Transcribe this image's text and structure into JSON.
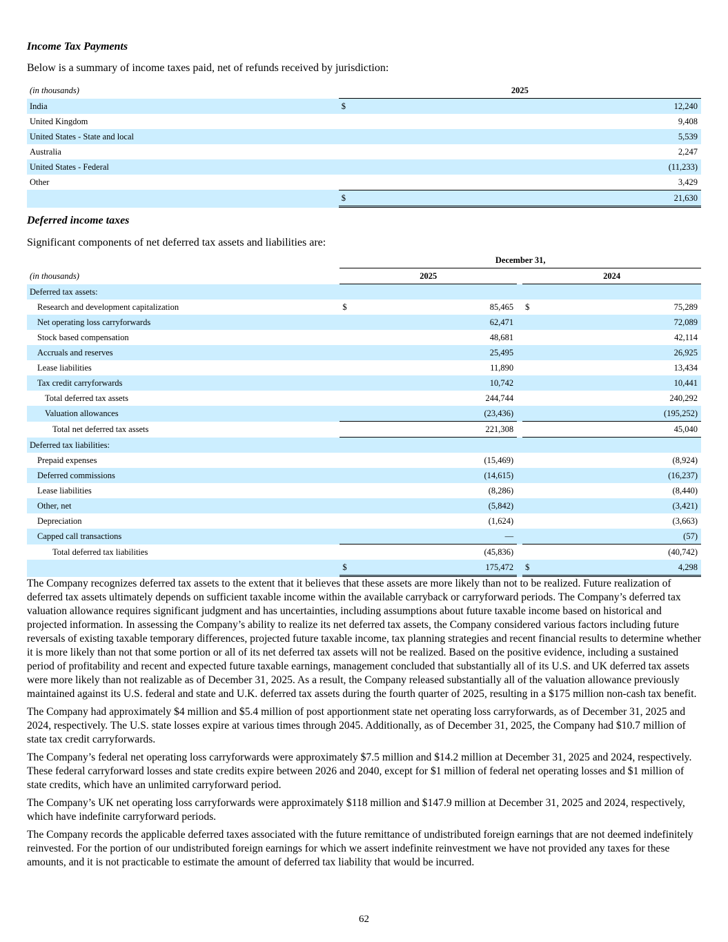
{
  "section1": {
    "heading": "Income Tax Payments",
    "intro": "Below is a summary of income taxes paid, net of refunds received by jurisdiction:",
    "units": "(in thousands)",
    "year": "2025",
    "rows": [
      {
        "label": "India",
        "dollar": "$",
        "value": "12,240"
      },
      {
        "label": "United Kingdom",
        "dollar": "",
        "value": "9,408"
      },
      {
        "label": "United States - State and local",
        "dollar": "",
        "value": "5,539"
      },
      {
        "label": "Australia",
        "dollar": "",
        "value": "2,247"
      },
      {
        "label": "United States - Federal",
        "dollar": "",
        "value": "(11,233)"
      },
      {
        "label": "Other",
        "dollar": "",
        "value": "3,429"
      },
      {
        "label": "",
        "dollar": "$",
        "value": "21,630"
      }
    ]
  },
  "section2": {
    "heading": "Deferred income taxes",
    "intro": "Significant components of net deferred tax assets and liabilities are:",
    "period_header": "December 31,",
    "units": "(in thousands)",
    "years": [
      "2025",
      "2024"
    ],
    "rows": [
      {
        "label": "Deferred tax assets:",
        "indent": 0,
        "d1": "",
        "v1": "",
        "d2": "",
        "v2": ""
      },
      {
        "label": "Research and development capitalization",
        "indent": 1,
        "d1": "$",
        "v1": "85,465",
        "d2": "$",
        "v2": "75,289"
      },
      {
        "label": "Net operating loss carryforwards",
        "indent": 1,
        "d1": "",
        "v1": "62,471",
        "d2": "",
        "v2": "72,089"
      },
      {
        "label": "Stock based compensation",
        "indent": 1,
        "d1": "",
        "v1": "48,681",
        "d2": "",
        "v2": "42,114"
      },
      {
        "label": "Accruals and reserves",
        "indent": 1,
        "d1": "",
        "v1": "25,495",
        "d2": "",
        "v2": "26,925"
      },
      {
        "label": "Lease liabilities",
        "indent": 1,
        "d1": "",
        "v1": "11,890",
        "d2": "",
        "v2": "13,434"
      },
      {
        "label": "Tax credit carryforwards",
        "indent": 1,
        "d1": "",
        "v1": "10,742",
        "d2": "",
        "v2": "10,441"
      },
      {
        "label": "Total deferred tax assets",
        "indent": 2,
        "d1": "",
        "v1": "244,744",
        "d2": "",
        "v2": "240,292"
      },
      {
        "label": "Valuation allowances",
        "indent": 2,
        "d1": "",
        "v1": "(23,436)",
        "d2": "",
        "v2": "(195,252)"
      },
      {
        "label": "Total net deferred tax assets",
        "indent": 3,
        "d1": "",
        "v1": "221,308",
        "d2": "",
        "v2": "45,040"
      },
      {
        "label": "Deferred tax liabilities:",
        "indent": 0,
        "d1": "",
        "v1": "",
        "d2": "",
        "v2": ""
      },
      {
        "label": "Prepaid expenses",
        "indent": 1,
        "d1": "",
        "v1": "(15,469)",
        "d2": "",
        "v2": "(8,924)"
      },
      {
        "label": "Deferred commissions",
        "indent": 1,
        "d1": "",
        "v1": "(14,615)",
        "d2": "",
        "v2": "(16,237)"
      },
      {
        "label": "Lease liabilities",
        "indent": 1,
        "d1": "",
        "v1": "(8,286)",
        "d2": "",
        "v2": "(8,440)"
      },
      {
        "label": "Other, net",
        "indent": 1,
        "d1": "",
        "v1": "(5,842)",
        "d2": "",
        "v2": "(3,421)"
      },
      {
        "label": "Depreciation",
        "indent": 1,
        "d1": "",
        "v1": "(1,624)",
        "d2": "",
        "v2": "(3,663)"
      },
      {
        "label": "Capped call transactions",
        "indent": 1,
        "d1": "",
        "v1": "—",
        "d2": "",
        "v2": "(57)"
      },
      {
        "label": "Total deferred tax liabilities",
        "indent": 3,
        "d1": "",
        "v1": "(45,836)",
        "d2": "",
        "v2": "(40,742)"
      },
      {
        "label": "",
        "indent": 0,
        "d1": "$",
        "v1": "175,472",
        "d2": "$",
        "v2": "4,298"
      }
    ]
  },
  "paragraphs": [
    "The Company recognizes deferred tax assets to the extent that it believes that these assets are more likely than not to be realized. Future realization of deferred tax assets ultimately depends on sufficient taxable income within the available carryback or carryforward periods. The Company’s deferred tax valuation allowance requires significant judgment and has uncertainties, including assumptions about future taxable income based on historical and projected information. In assessing the Company’s ability to realize its net deferred tax assets, the Company considered various factors including future reversals of existing taxable temporary differences, projected future taxable income, tax planning strategies and recent financial results to determine whether it is more likely than not that some portion or all of its net deferred tax assets will not be realized. Based on the positive evidence, including a sustained period of profitability and recent and expected future taxable earnings, management concluded that substantially all of its U.S. and UK deferred tax assets were more likely than not realizable as of December 31, 2025. As a result, the Company released substantially all of the valuation allowance previously maintained against its U.S. federal and state and U.K. deferred tax assets during the fourth quarter of 2025, resulting in a $175 million non-cash tax benefit.",
    "The Company had approximately $4 million and $5.4 million of post apportionment state net operating loss carryforwards, as of December 31, 2025 and 2024, respectively. The U.S. state losses expire at various times through 2045. Additionally, as of December 31, 2025, the Company had $10.7 million of state tax credit carryforwards.",
    "The Company’s federal net operating loss carryforwards were approximately $7.5 million and $14.2 million at December 31, 2025 and 2024, respectively. These federal carryforward losses and state credits expire between 2026 and 2040, except for $1 million of federal net operating losses and $1 million of state credits, which have an unlimited carryforward period.",
    "The Company’s UK net operating loss carryforwards were approximately $118 million and $147.9 million at December 31, 2025 and 2024, respectively, which have indefinite carryforward periods.",
    "The Company records the applicable deferred taxes associated with the future remittance of undistributed foreign earnings that are not deemed indefinitely reinvested. For the portion of our undistributed foreign earnings for which we assert indefinite reinvestment we have not provided any taxes for these amounts, and it is not practicable to estimate the amount of deferred tax liability that would be incurred."
  ],
  "page_number": "62",
  "colors": {
    "row_shade": "#cceeff"
  }
}
